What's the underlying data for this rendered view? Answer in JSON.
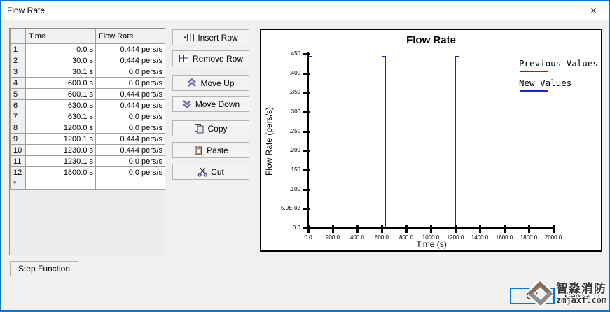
{
  "window": {
    "title": "Flow Rate",
    "close_glyph": "×"
  },
  "table": {
    "columns": [
      "",
      "Time",
      "Flow Rate"
    ],
    "rows": [
      [
        "1",
        "0.0 s",
        "0.444 pers/s"
      ],
      [
        "2",
        "30.0 s",
        "0.444 pers/s"
      ],
      [
        "3",
        "30.1 s",
        "0.0 pers/s"
      ],
      [
        "4",
        "600.0 s",
        "0.0 pers/s"
      ],
      [
        "5",
        "600.1 s",
        "0.444 pers/s"
      ],
      [
        "6",
        "630.0 s",
        "0.444 pers/s"
      ],
      [
        "7",
        "630.1 s",
        "0.0 pers/s"
      ],
      [
        "8",
        "1200.0 s",
        "0.0 pers/s"
      ],
      [
        "9",
        "1200.1 s",
        "0.444 pers/s"
      ],
      [
        "10",
        "1230.0 s",
        "0.444 pers/s"
      ],
      [
        "11",
        "1230.1 s",
        "0.0 pers/s"
      ],
      [
        "12",
        "1800.0 s",
        "0.0 pers/s"
      ],
      [
        "*",
        "",
        ""
      ]
    ]
  },
  "side_buttons": {
    "insert_row": "Insert Row",
    "remove_row": "Remove Row",
    "move_up": "Move Up",
    "move_down": "Move Down",
    "copy": "Copy",
    "paste": "Paste",
    "cut": "Cut"
  },
  "footer_buttons": {
    "step_function": "Step Function",
    "ok": "OK",
    "cancel": "Cancel"
  },
  "watermark": {
    "title": "智淼消防",
    "domain": "zmjaxf.com"
  },
  "chart_data": {
    "type": "line",
    "title": "Flow Rate",
    "xlabel": "Time (s)",
    "ylabel": "Flow Rate (pers/s)",
    "xlim": [
      0,
      2000
    ],
    "ylim": [
      0,
      0.45
    ],
    "grid": false,
    "legend_position": "top-right",
    "x_ticks": [
      [
        0,
        "0.0"
      ],
      [
        200,
        "200.0"
      ],
      [
        400,
        "400.0"
      ],
      [
        600,
        "600.0"
      ],
      [
        800,
        "800.0"
      ],
      [
        1000,
        "1000.0"
      ],
      [
        1200,
        "1200.0"
      ],
      [
        1400,
        "1400.0"
      ],
      [
        1600,
        "1600.0"
      ],
      [
        1800,
        "1800.0"
      ],
      [
        2000,
        "2000.0"
      ]
    ],
    "y_ticks": [
      [
        0,
        "0.0"
      ],
      [
        0.05,
        "5.0E-02"
      ],
      [
        0.1,
        ".100"
      ],
      [
        0.15,
        ".150"
      ],
      [
        0.2,
        ".200"
      ],
      [
        0.25,
        ".250"
      ],
      [
        0.3,
        ".300"
      ],
      [
        0.35,
        ".350"
      ],
      [
        0.4,
        ".400"
      ],
      [
        0.45,
        ".450"
      ]
    ],
    "legend": [
      {
        "label": "Previous Values",
        "color": "#dd0000"
      },
      {
        "label": "New Values",
        "color": "#2222cc"
      }
    ],
    "series": [
      {
        "name": "New Values",
        "color": "#2222cc",
        "x": [
          0,
          30,
          30.1,
          600,
          600.1,
          630,
          630.1,
          1200,
          1200.1,
          1230,
          1230.1,
          1800
        ],
        "y": [
          0.444,
          0.444,
          0,
          0,
          0.444,
          0.444,
          0,
          0,
          0.444,
          0.444,
          0,
          0
        ]
      }
    ]
  }
}
